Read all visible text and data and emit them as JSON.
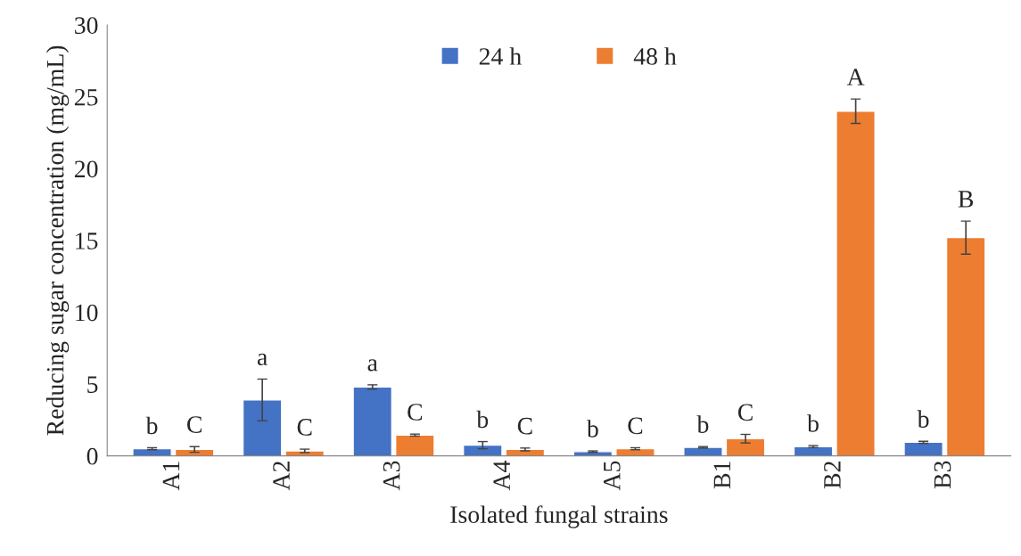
{
  "chart_data": {
    "type": "bar",
    "xlabel": "Isolated fungal strains",
    "ylabel": "Reducing sugar concentration (mg/mL)",
    "categories": [
      "A1",
      "A2",
      "A3",
      "A4",
      "A5",
      "B1",
      "B2",
      "B3"
    ],
    "series": [
      {
        "name": "24 h",
        "color": "#4472c4",
        "values": [
          0.5,
          3.9,
          4.8,
          0.75,
          0.3,
          0.6,
          0.65,
          0.95
        ],
        "errors": [
          0.07,
          1.45,
          0.15,
          0.25,
          0.05,
          0.05,
          0.07,
          0.07
        ],
        "value_labels": [
          "b",
          "a",
          "a",
          "b",
          "b",
          "b",
          "b",
          "b"
        ]
      },
      {
        "name": "48 h",
        "color": "#ed7d31",
        "values": [
          0.45,
          0.35,
          1.45,
          0.45,
          0.5,
          1.2,
          24.0,
          15.2
        ],
        "errors": [
          0.2,
          0.12,
          0.07,
          0.1,
          0.07,
          0.3,
          0.85,
          1.15
        ],
        "value_labels": [
          "C",
          "C",
          "C",
          "C",
          "C",
          "C",
          "A",
          "B"
        ]
      }
    ],
    "ylim": [
      0,
      30
    ],
    "yticks": [
      0,
      5,
      10,
      15,
      20,
      25,
      30
    ],
    "grid": false,
    "legend": "top"
  }
}
